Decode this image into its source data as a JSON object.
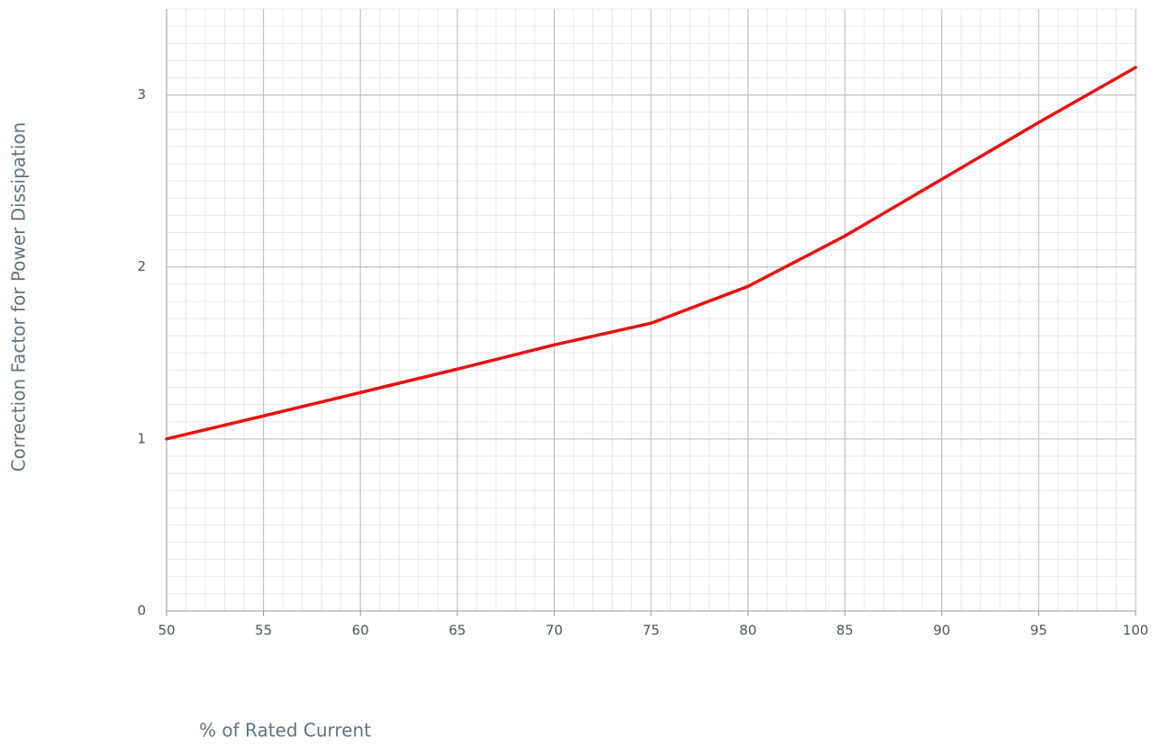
{
  "chart_data": {
    "type": "line",
    "x_label": "% of Rated Current",
    "y_label": "Correction Factor for Power Dissipation",
    "x": [
      50,
      55,
      60,
      65,
      70,
      75,
      80,
      85,
      90,
      95,
      100
    ],
    "series": [
      {
        "color": "#e8100f",
        "values": [
          1.0,
          1.134,
          1.27,
          1.406,
          1.547,
          1.673,
          1.887,
          2.18,
          2.51,
          2.84,
          3.16
        ]
      }
    ],
    "xlim": [
      50,
      100
    ],
    "ylim": [
      0,
      3.5
    ],
    "xticks": [
      50,
      55,
      60,
      65,
      70,
      75,
      80,
      85,
      90,
      95,
      100
    ],
    "yticks": [
      0,
      1,
      2,
      3
    ],
    "grid": true,
    "minor_grid": {
      "x": 1,
      "y": 0.1
    }
  }
}
